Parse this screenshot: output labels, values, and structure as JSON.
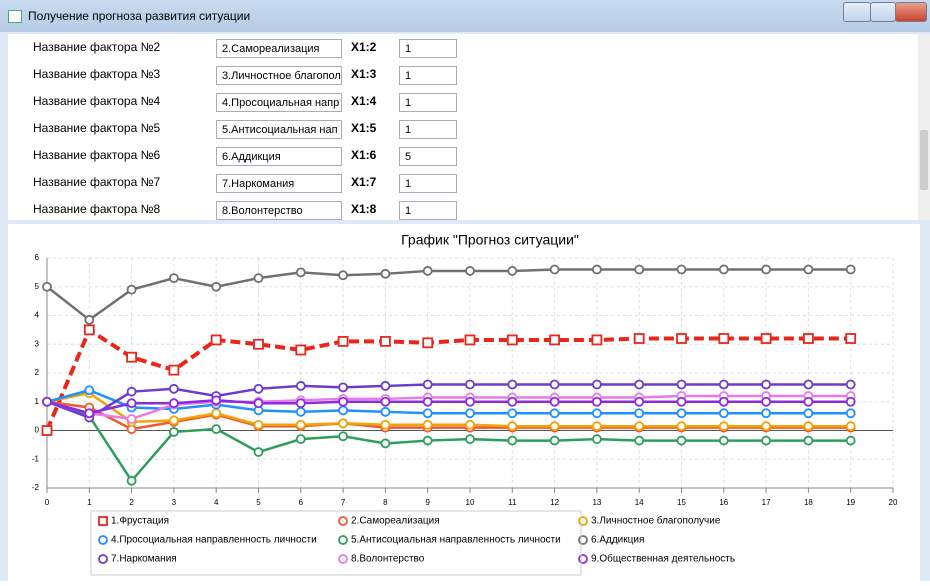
{
  "window_title": "Получение прогноза развития ситуации",
  "form": {
    "rows": [
      {
        "label": "Название фактора №2",
        "factor": "2.Самореализация",
        "code": "X1:2",
        "value": "1"
      },
      {
        "label": "Название фактора №3",
        "factor": "3.Личностное благопол",
        "code": "X1:3",
        "value": "1"
      },
      {
        "label": "Название фактора №4",
        "factor": "4.Просоциальная напр",
        "code": "X1:4",
        "value": "1"
      },
      {
        "label": "Название фактора №5",
        "factor": "5.Антисоциальная нап",
        "code": "X1:5",
        "value": "1"
      },
      {
        "label": "Название фактора №6",
        "factor": "6.Аддикция",
        "code": "X1:6",
        "value": "5"
      },
      {
        "label": "Название фактора №7",
        "factor": "7.Наркомания",
        "code": "X1:7",
        "value": "1"
      },
      {
        "label": "Название фактора №8",
        "factor": "8.Волонтерство",
        "code": "X1:8",
        "value": "1"
      }
    ]
  },
  "chart_data": {
    "type": "line",
    "title": "График \"Прогноз ситуации\"",
    "x": [
      0,
      1,
      2,
      3,
      4,
      5,
      6,
      7,
      8,
      9,
      10,
      11,
      12,
      13,
      14,
      15,
      16,
      17,
      18,
      19
    ],
    "xlim": [
      0,
      20
    ],
    "xticks": [
      0,
      1,
      2,
      3,
      4,
      5,
      6,
      7,
      8,
      9,
      10,
      11,
      12,
      13,
      14,
      15,
      16,
      17,
      18,
      19,
      20
    ],
    "ylim": [
      -2,
      6
    ],
    "yticks": [
      -2,
      -1,
      0,
      1,
      2,
      3,
      4,
      5,
      6
    ],
    "grid": true,
    "legend": "bottom",
    "series": [
      {
        "name": "1.Фрустация",
        "color": "#e8261b",
        "marker": "square",
        "dashed": true,
        "values": [
          0,
          3.5,
          2.55,
          2.1,
          3.15,
          3.0,
          2.8,
          3.1,
          3.1,
          3.05,
          3.15,
          3.15,
          3.15,
          3.15,
          3.2,
          3.2,
          3.2,
          3.2,
          3.2,
          3.2
        ]
      },
      {
        "name": "2.Самореализация",
        "color": "#f05a28",
        "values": [
          1,
          0.8,
          0.05,
          0.3,
          0.55,
          0.15,
          0.15,
          0.25,
          0.1,
          0.1,
          0.1,
          0.1,
          0.1,
          0.1,
          0.1,
          0.1,
          0.1,
          0.1,
          0.1,
          0.1
        ]
      },
      {
        "name": "3.Личностное благополучие",
        "color": "#f0a30a",
        "values": [
          1,
          1.3,
          0.3,
          0.35,
          0.6,
          0.2,
          0.2,
          0.25,
          0.2,
          0.2,
          0.2,
          0.15,
          0.15,
          0.15,
          0.15,
          0.15,
          0.15,
          0.15,
          0.15,
          0.15
        ]
      },
      {
        "name": "4.Просоциальная направленность личности",
        "color": "#1e90ff",
        "values": [
          1,
          1.4,
          0.8,
          0.75,
          0.9,
          0.7,
          0.65,
          0.7,
          0.65,
          0.6,
          0.6,
          0.6,
          0.6,
          0.6,
          0.6,
          0.6,
          0.6,
          0.6,
          0.6,
          0.6
        ]
      },
      {
        "name": "5.Антисоциальная направленность личности",
        "color": "#2ca05a",
        "values": [
          1,
          0.5,
          -1.75,
          -0.05,
          0.05,
          -0.75,
          -0.3,
          -0.2,
          -0.45,
          -0.35,
          -0.3,
          -0.35,
          -0.35,
          -0.3,
          -0.35,
          -0.35,
          -0.35,
          -0.35,
          -0.35,
          -0.35
        ]
      },
      {
        "name": "6.Аддикция",
        "color": "#707070",
        "values": [
          5,
          3.85,
          4.9,
          5.3,
          5.0,
          5.3,
          5.5,
          5.4,
          5.45,
          5.55,
          5.55,
          5.55,
          5.6,
          5.6,
          5.6,
          5.6,
          5.6,
          5.6,
          5.6,
          5.6
        ]
      },
      {
        "name": "7.Наркомания",
        "color": "#6a3ccf",
        "values": [
          1,
          0.45,
          1.35,
          1.45,
          1.2,
          1.45,
          1.55,
          1.5,
          1.55,
          1.6,
          1.6,
          1.6,
          1.6,
          1.6,
          1.6,
          1.6,
          1.6,
          1.6,
          1.6,
          1.6
        ]
      },
      {
        "name": "8.Волонтерство",
        "color": "#e87ae8",
        "values": [
          1,
          0.6,
          0.4,
          0.9,
          1.0,
          1.0,
          1.05,
          1.1,
          1.1,
          1.15,
          1.15,
          1.15,
          1.15,
          1.15,
          1.15,
          1.2,
          1.2,
          1.2,
          1.2,
          1.2
        ]
      },
      {
        "name": "9.Общественная деятельность",
        "color": "#8a2be2",
        "values": [
          1,
          0.6,
          0.95,
          0.95,
          1.05,
          0.95,
          0.95,
          1.0,
          1.0,
          1.0,
          1.0,
          1.0,
          1.0,
          1.0,
          1.0,
          1.0,
          1.0,
          1.0,
          1.0,
          1.0
        ]
      }
    ]
  }
}
